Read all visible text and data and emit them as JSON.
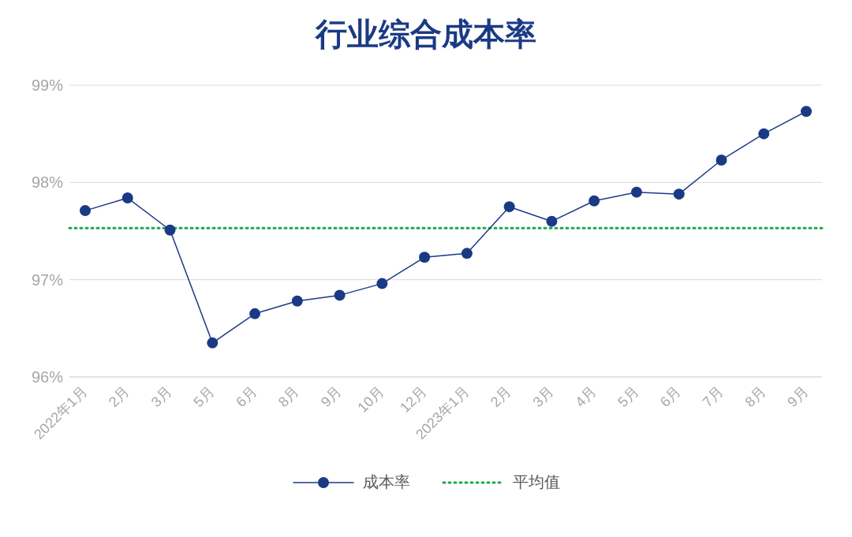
{
  "chart_data": {
    "type": "line",
    "title": "行业综合成本率",
    "categories": [
      "2022年1月",
      "2月",
      "3月",
      "5月",
      "6月",
      "8月",
      "9月",
      "10月",
      "12月",
      "2023年1月",
      "2月",
      "3月",
      "4月",
      "5月",
      "6月",
      "7月",
      "8月",
      "9月"
    ],
    "series": [
      {
        "name": "成本率",
        "color": "#1b3a85",
        "values": [
          97.71,
          97.84,
          97.51,
          96.35,
          96.65,
          96.78,
          96.84,
          96.96,
          97.23,
          97.27,
          97.75,
          97.6,
          97.81,
          97.9,
          97.88,
          98.23,
          98.5,
          98.73
        ]
      }
    ],
    "ref_lines": [
      {
        "axis": "y",
        "value": 97.53,
        "label": "平均值",
        "color": "#1aa84a",
        "line_style": "dotted"
      }
    ],
    "ylim": [
      96,
      99
    ],
    "yticks": [
      {
        "value": 96,
        "label": "96%"
      },
      {
        "value": 97,
        "label": "97%"
      },
      {
        "value": 98,
        "label": "98%"
      },
      {
        "value": 99,
        "label": "99%"
      }
    ],
    "grid": "y",
    "legend": "bottom",
    "marker": "circle",
    "line_style": "solid"
  }
}
